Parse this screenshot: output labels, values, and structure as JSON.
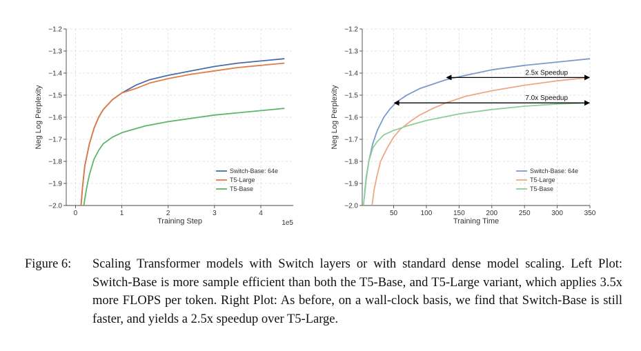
{
  "chart_data": [
    {
      "type": "line",
      "title": "",
      "xlabel": "Training Step",
      "ylabel": "Neg Log Perplexity",
      "x_offset_text": "1e5",
      "xlim": [
        -0.2,
        4.7
      ],
      "ylim": [
        -2.0,
        -1.2
      ],
      "xticks": [
        0,
        1,
        2,
        3,
        4
      ],
      "xtick_labels": [
        "0",
        "1",
        "2",
        "3",
        "4"
      ],
      "yticks": [
        -2.0,
        -1.9,
        -1.8,
        -1.7,
        -1.6,
        -1.5,
        -1.4,
        -1.3,
        -1.2
      ],
      "ytick_labels": [
        "−2.0",
        "−1.9",
        "−1.8",
        "−1.7",
        "−1.6",
        "−1.5",
        "−1.4",
        "−1.3",
        "−1.2"
      ],
      "grid": true,
      "legend_position": "lower-right",
      "series": [
        {
          "name": "Switch-Base: 64e",
          "color": "#4c6aa8",
          "x": [
            0.12,
            0.15,
            0.2,
            0.3,
            0.4,
            0.5,
            0.6,
            0.8,
            1.0,
            1.3,
            1.6,
            2.0,
            2.5,
            3.0,
            3.5,
            4.0,
            4.5
          ],
          "y": [
            -2.0,
            -1.92,
            -1.82,
            -1.72,
            -1.65,
            -1.6,
            -1.565,
            -1.52,
            -1.49,
            -1.455,
            -1.43,
            -1.41,
            -1.39,
            -1.37,
            -1.355,
            -1.345,
            -1.335
          ]
        },
        {
          "name": "T5-Large",
          "color": "#e07b45",
          "x": [
            0.12,
            0.15,
            0.2,
            0.3,
            0.4,
            0.5,
            0.6,
            0.8,
            1.0,
            1.3,
            1.6,
            2.0,
            2.5,
            3.0,
            3.5,
            4.0,
            4.5
          ],
          "y": [
            -2.0,
            -1.92,
            -1.82,
            -1.72,
            -1.65,
            -1.6,
            -1.565,
            -1.52,
            -1.49,
            -1.47,
            -1.445,
            -1.425,
            -1.405,
            -1.39,
            -1.375,
            -1.365,
            -1.355
          ]
        },
        {
          "name": "T5-Base",
          "color": "#5cb56a",
          "x": [
            0.18,
            0.2,
            0.25,
            0.3,
            0.4,
            0.5,
            0.6,
            0.8,
            1.0,
            1.5,
            2.0,
            2.5,
            3.0,
            3.5,
            4.0,
            4.5
          ],
          "y": [
            -2.0,
            -1.97,
            -1.91,
            -1.86,
            -1.79,
            -1.75,
            -1.72,
            -1.69,
            -1.67,
            -1.64,
            -1.62,
            -1.605,
            -1.59,
            -1.58,
            -1.57,
            -1.56
          ]
        }
      ]
    },
    {
      "type": "line",
      "title": "",
      "xlabel": "Training Time",
      "ylabel": "Neg Log Perplexity",
      "xlim": [
        2,
        350
      ],
      "ylim": [
        -2.0,
        -1.2
      ],
      "xticks": [
        50,
        100,
        150,
        200,
        250,
        300,
        350
      ],
      "xtick_labels": [
        "50",
        "100",
        "150",
        "200",
        "250",
        "300",
        "350"
      ],
      "yticks": [
        -2.0,
        -1.9,
        -1.8,
        -1.7,
        -1.6,
        -1.5,
        -1.4,
        -1.3,
        -1.2
      ],
      "ytick_labels": [
        "−2.0",
        "−1.9",
        "−1.8",
        "−1.7",
        "−1.6",
        "−1.5",
        "−1.4",
        "−1.3",
        "−1.2"
      ],
      "grid": true,
      "legend_position": "lower-right",
      "series": [
        {
          "name": "Switch-Base: 64e",
          "color": "#7a9acb",
          "x": [
            5,
            8,
            12,
            18,
            25,
            35,
            45,
            55,
            70,
            90,
            110,
            130,
            160,
            200,
            250,
            300,
            350
          ],
          "y": [
            -1.97,
            -1.88,
            -1.8,
            -1.72,
            -1.66,
            -1.6,
            -1.56,
            -1.53,
            -1.5,
            -1.47,
            -1.45,
            -1.43,
            -1.41,
            -1.385,
            -1.365,
            -1.35,
            -1.335
          ]
        },
        {
          "name": "T5-Large",
          "color": "#eda883",
          "x": [
            17,
            20,
            25,
            30,
            40,
            50,
            60,
            75,
            90,
            110,
            130,
            160,
            200,
            250,
            300,
            350
          ],
          "y": [
            -2.0,
            -1.93,
            -1.86,
            -1.8,
            -1.74,
            -1.69,
            -1.655,
            -1.62,
            -1.59,
            -1.56,
            -1.535,
            -1.505,
            -1.48,
            -1.455,
            -1.435,
            -1.42
          ]
        },
        {
          "name": "T5-Base",
          "color": "#8fce96",
          "x": [
            4,
            6,
            8,
            12,
            18,
            25,
            35,
            50,
            70,
            100,
            150,
            200,
            250,
            300,
            350
          ],
          "y": [
            -2.0,
            -1.93,
            -1.87,
            -1.8,
            -1.74,
            -1.71,
            -1.68,
            -1.66,
            -1.64,
            -1.615,
            -1.585,
            -1.565,
            -1.55,
            -1.54,
            -1.535
          ]
        }
      ],
      "annotations": [
        {
          "text": "2.5x Speedup",
          "x_start": 130,
          "x_end": 350,
          "y": -1.42
        },
        {
          "text": "7.0x Speedup",
          "x_start": 50,
          "x_end": 350,
          "y": -1.535
        }
      ]
    }
  ],
  "caption": {
    "label": "Figure 6:",
    "text": "Scaling Transformer models with Switch layers or with standard dense model scaling. Left Plot: Switch-Base is more sample efficient than both the T5-Base, and T5-Large variant, which applies 3.5x more FLOPS per token. Right Plot: As before, on a wall-clock basis, we find that Switch-Base is still faster, and yields a 2.5x speedup over T5-Large."
  }
}
